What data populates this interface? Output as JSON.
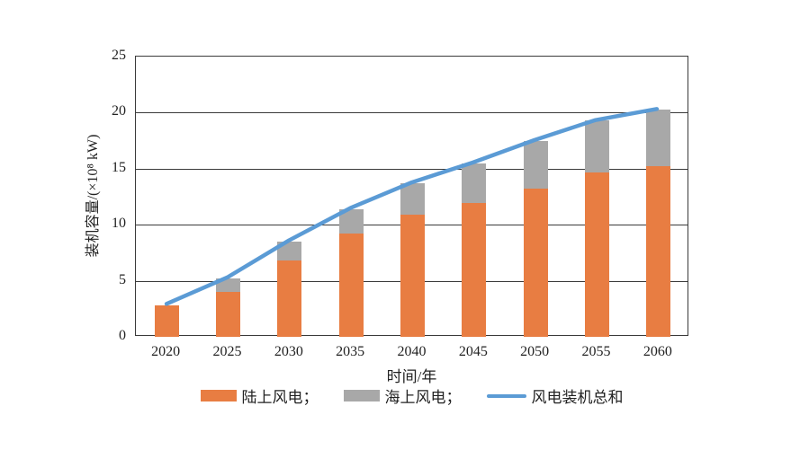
{
  "chart_data": {
    "type": "bar",
    "subtype": "stacked-bars-with-line-overlay",
    "categories": [
      "2020",
      "2025",
      "2030",
      "2035",
      "2040",
      "2045",
      "2050",
      "2055",
      "2060"
    ],
    "series": [
      {
        "key": "onshore",
        "name": "陆上风电",
        "render": "bar",
        "color": "#E87D42",
        "values": [
          2.8,
          4.0,
          6.8,
          9.2,
          10.9,
          11.9,
          13.2,
          14.7,
          15.2
        ]
      },
      {
        "key": "offshore",
        "name": "海上风电",
        "render": "bar",
        "color": "#A8A8A8",
        "values": [
          0,
          1.2,
          1.7,
          2.2,
          2.8,
          3.6,
          4.3,
          4.6,
          5.1
        ]
      },
      {
        "key": "total",
        "name": "风电装机总和",
        "render": "line",
        "color": "#5B9BD5",
        "values": [
          2.8,
          5.2,
          8.5,
          11.4,
          13.7,
          15.5,
          17.5,
          19.3,
          20.3
        ]
      }
    ],
    "legend": [
      {
        "key": "onshore",
        "label": "陆上风电；",
        "swatch": "bar",
        "color": "#E87D42"
      },
      {
        "key": "offshore",
        "label": "海上风电；",
        "swatch": "bar",
        "color": "#A8A8A8"
      },
      {
        "key": "total",
        "label": "风电装机总和",
        "swatch": "line",
        "color": "#5B9BD5"
      }
    ],
    "xlabel": "时间/年",
    "ylabel": "装机容量/(×10⁸ kW)",
    "ylim": [
      0,
      25
    ],
    "yticks": [
      0,
      5,
      10,
      15,
      20,
      25
    ],
    "grid": "horizontal",
    "legend_position": "bottom",
    "axis_color": "#3a3a3a",
    "text_color": "#222222"
  }
}
